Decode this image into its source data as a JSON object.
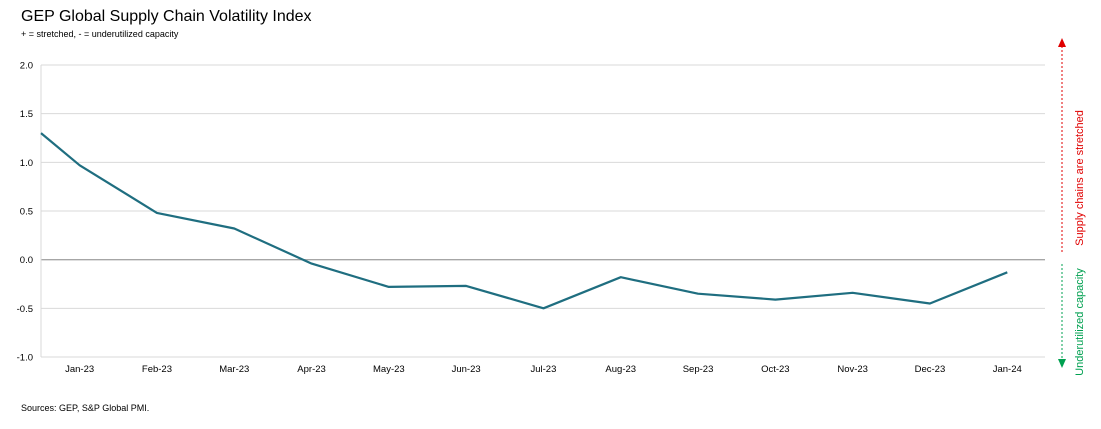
{
  "chart_data": {
    "type": "line",
    "title": "GEP Global Supply Chain Volatility Index",
    "subtitle": "+ = stretched, - = underutilized capacity",
    "source": "Sources: GEP, S&P Global PMI.",
    "categories": [
      "Jan-23",
      "Feb-23",
      "Mar-23",
      "Apr-23",
      "May-23",
      "Jun-23",
      "Jul-23",
      "Aug-23",
      "Sep-23",
      "Oct-23",
      "Nov-23",
      "Dec-23",
      "Jan-24"
    ],
    "x_start_value": 1.3,
    "values": [
      0.97,
      0.48,
      0.32,
      -0.04,
      -0.28,
      -0.27,
      -0.5,
      -0.18,
      -0.35,
      -0.41,
      -0.34,
      -0.45,
      -0.13
    ],
    "ylim": [
      -1.0,
      2.0
    ],
    "yticks": [
      "2.0",
      "1.5",
      "1.0",
      "0.5",
      "0.0",
      "-0.5",
      "-1.0"
    ],
    "grid": true,
    "line_color": "#1f6e80",
    "annotations": {
      "stretched": {
        "text": "Supply chains are stretched",
        "color": "#e00000"
      },
      "underutilized": {
        "text": "Underutilized capacity",
        "color": "#00a050"
      }
    }
  }
}
